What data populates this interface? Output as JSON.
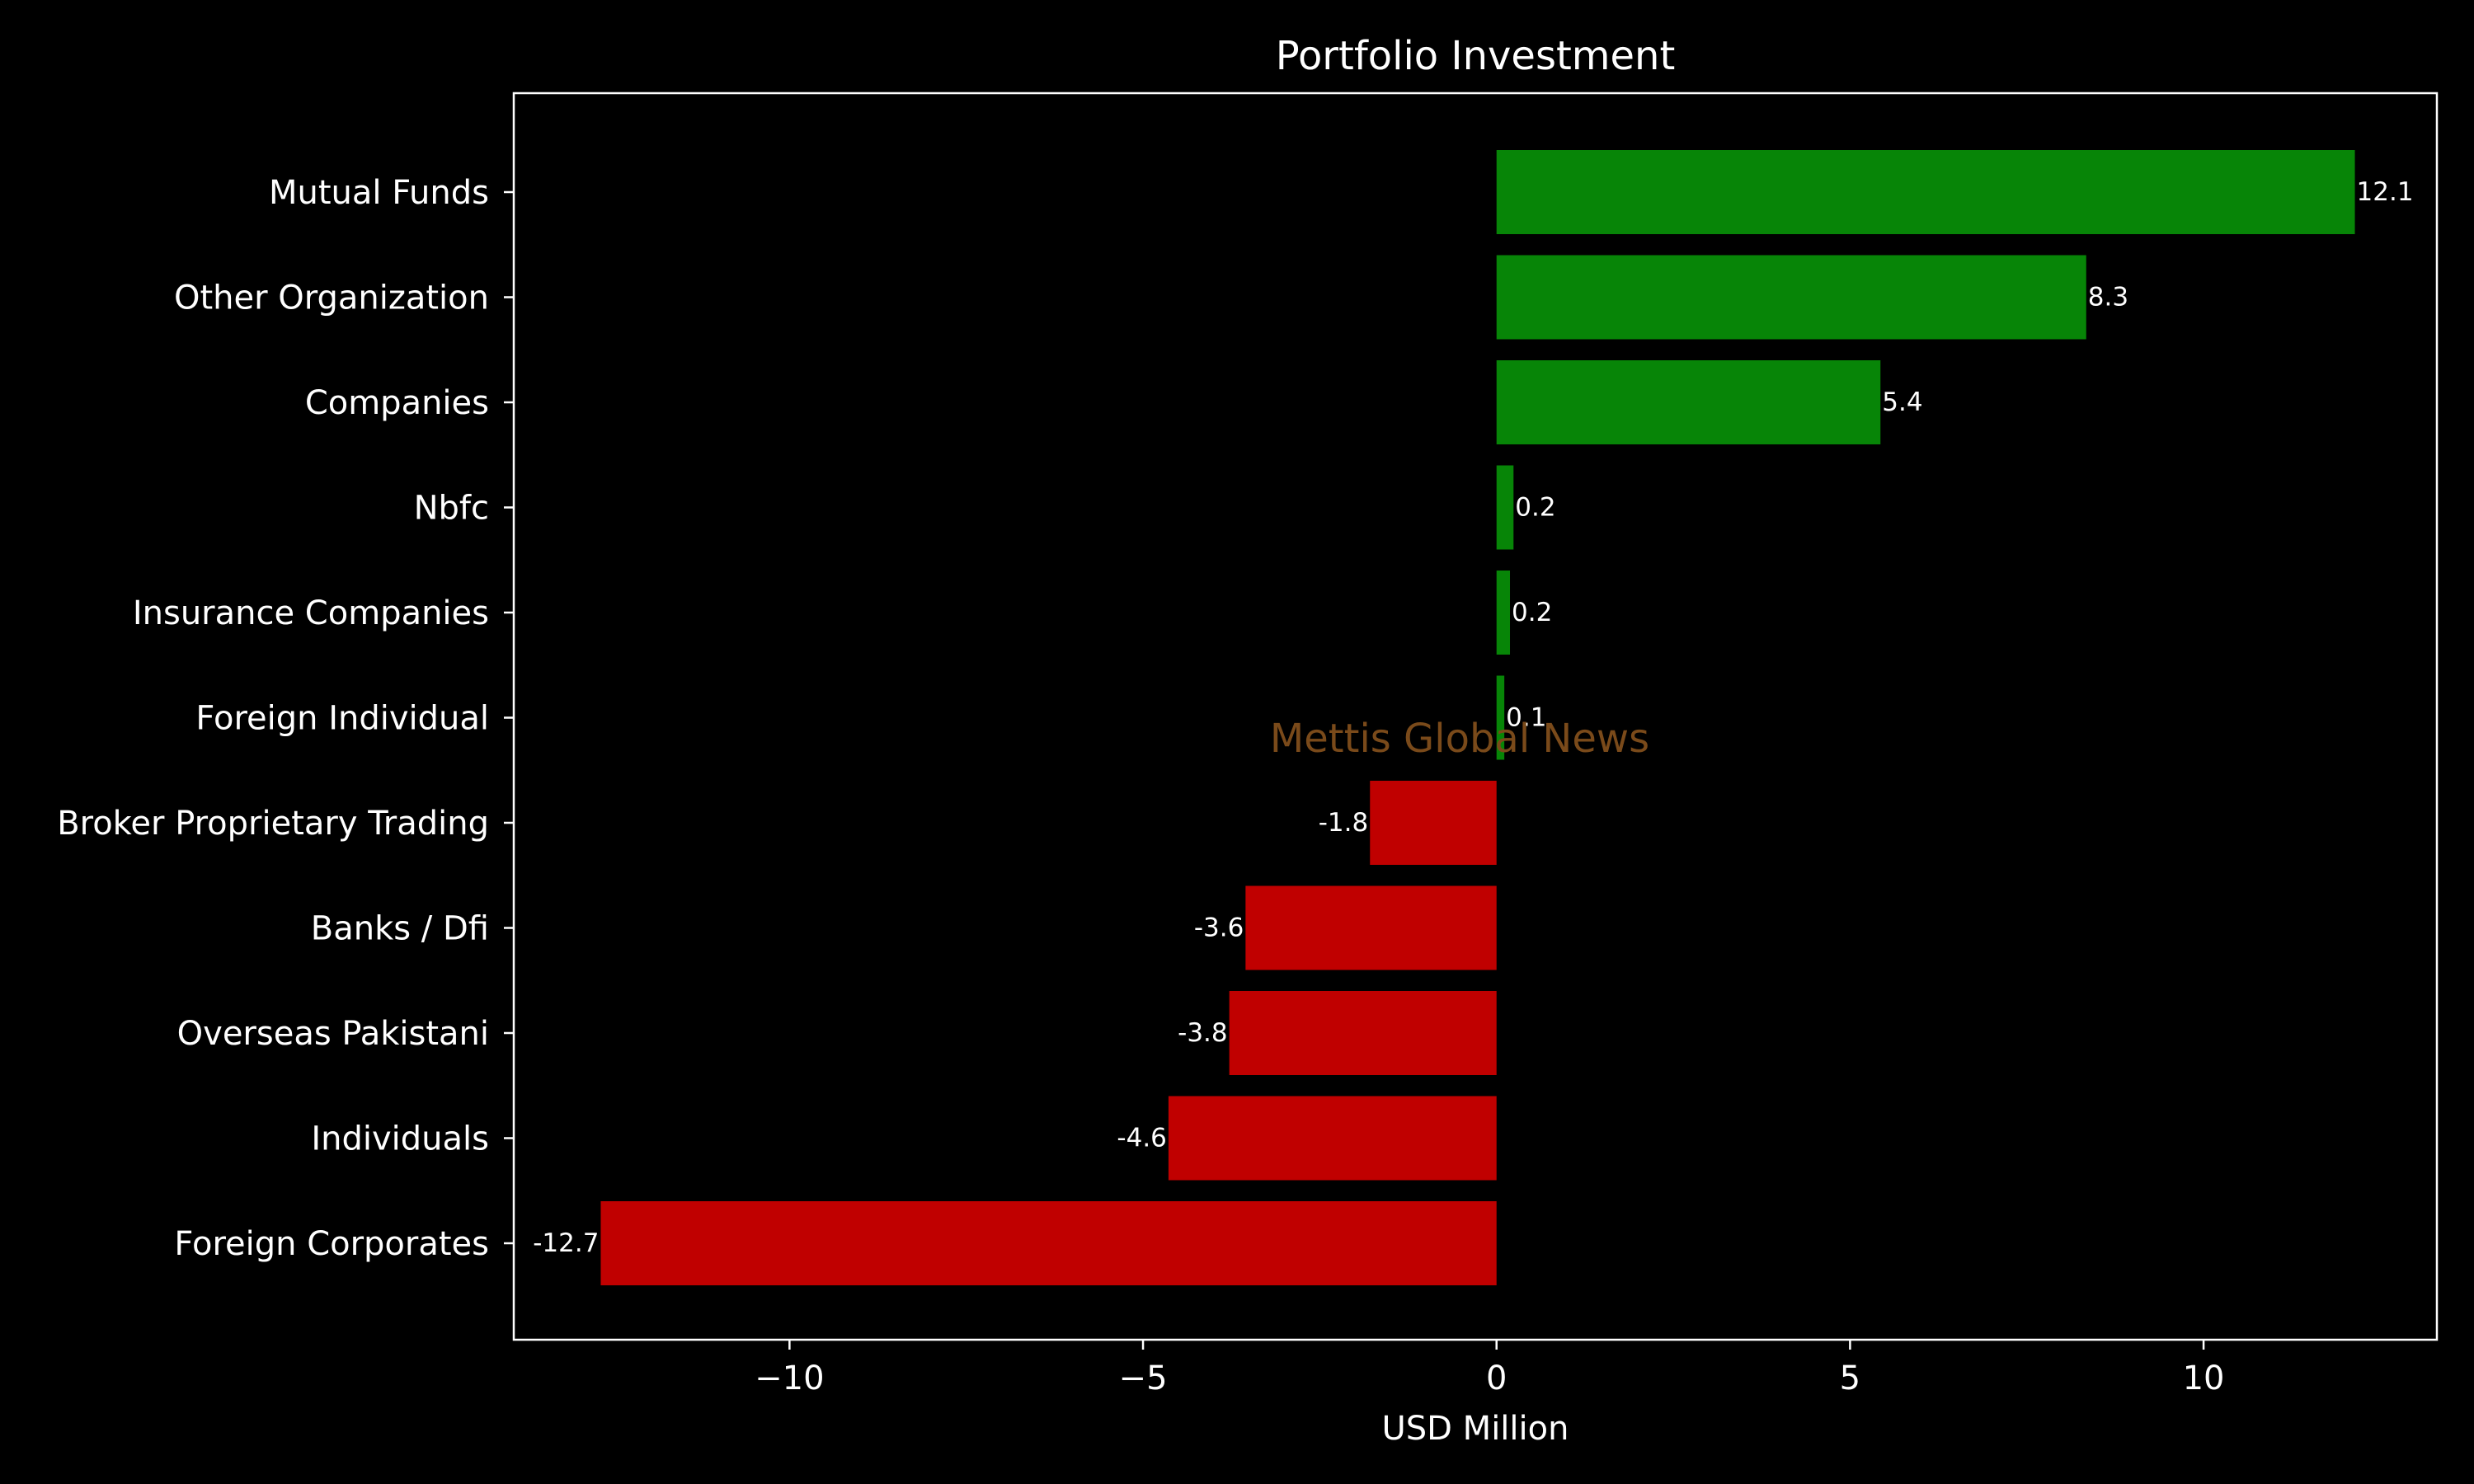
{
  "chart_data": {
    "type": "bar",
    "orientation": "horizontal",
    "title": "Portfolio Investment",
    "xlabel": "USD Million",
    "ylabel": "",
    "xlim": [
      -13.9,
      13.3
    ],
    "xticks": [
      -10,
      -5,
      0,
      5,
      10
    ],
    "xtick_labels": [
      "−10",
      "−5",
      "0",
      "5",
      "10"
    ],
    "categories": [
      "Mutual Funds",
      "Other Organization",
      "Companies",
      "Nbfc",
      "Insurance Companies",
      "Foreign Individual",
      "Broker Proprietary Trading",
      "Banks / Dfi",
      "Overseas Pakistani",
      "Individuals",
      "Foreign Corporates "
    ],
    "values": [
      12.14,
      8.34,
      5.43,
      0.24,
      0.19,
      0.11,
      -1.79,
      -3.55,
      -3.78,
      -4.64,
      -12.67
    ],
    "value_labels": [
      "12.1",
      "8.3",
      "5.4",
      "0.2",
      "0.2",
      "0.1",
      "-1.8",
      "-3.6",
      "-3.8",
      "-4.6",
      "-12.7"
    ],
    "colors": {
      "positive": "#078507",
      "negative": "#c00000",
      "background": "#000000",
      "text": "#ffffff",
      "watermark": "#7a4a1a"
    },
    "grid": false,
    "legend": "none",
    "watermark": "Mettis Global News"
  }
}
